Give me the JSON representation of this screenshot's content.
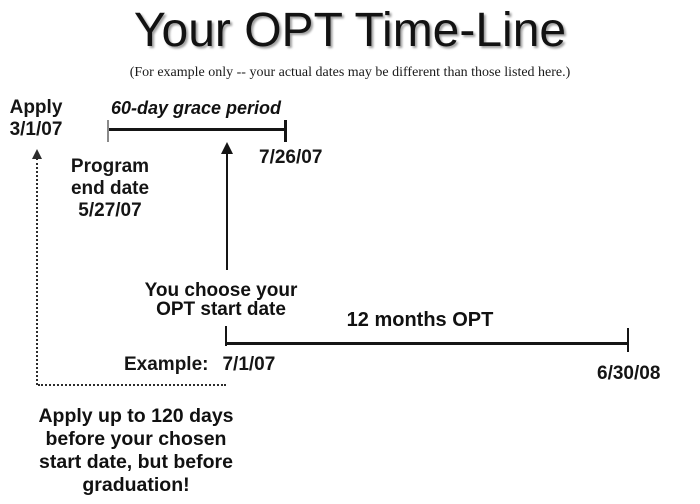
{
  "title": "Your OPT Time-Line",
  "subtitle": "(For example only -- your actual dates may be different than those listed here.)",
  "apply": {
    "label": "Apply",
    "date": "3/1/07"
  },
  "grace": {
    "label": "60-day grace period",
    "end_date": "7/26/07"
  },
  "program_end": {
    "line1": "Program",
    "line2": "end date",
    "date": "5/27/07"
  },
  "start_choice": {
    "line1": "You choose your",
    "line2": "OPT start date"
  },
  "example": {
    "label": "Example:",
    "date": "7/1/07"
  },
  "opt_period": {
    "label": "12 months OPT",
    "end_date": "6/30/08"
  },
  "note": {
    "line1": "Apply up to 120 days",
    "line2": "before your chosen",
    "line3": "start date, but before",
    "line4": "graduation!"
  },
  "colors": {
    "ink": "#151515",
    "tick_gray": "#8a8a8a",
    "title_shadow": "#9f9f9f"
  }
}
